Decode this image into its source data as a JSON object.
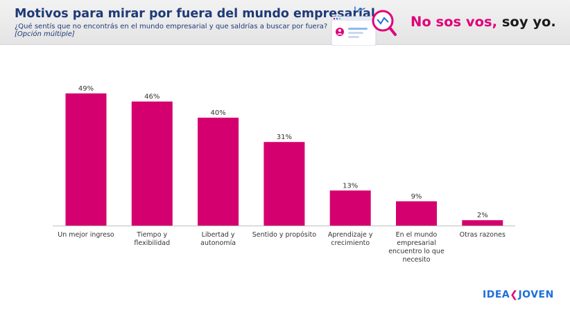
{
  "header": {
    "title": "Motivos para mirar por fuera del mundo empresarial",
    "subtitle": "¿Qué sentís que no encontrás en el mundo empresarial y que saldrías a buscar por fuera?",
    "note": "[Opción múltiple]"
  },
  "slogan": {
    "part1": "No sos vos,",
    "part2": " soy yo."
  },
  "brand": {
    "part1": "IDEA",
    "part2": "❮",
    "part3": "JOVEN"
  },
  "chart_data": {
    "type": "bar",
    "categories": [
      [
        "Un mejor ingreso"
      ],
      [
        "Tiempo y",
        "flexibilidad"
      ],
      [
        "Libertad y",
        "autonomía"
      ],
      [
        "Sentido y propósito"
      ],
      [
        "Aprendizaje y",
        "crecimiento"
      ],
      [
        "En el mundo",
        "empresarial",
        "encuentro lo que",
        "necesito"
      ],
      [
        "Otras razones"
      ]
    ],
    "values": [
      49,
      46,
      40,
      31,
      13,
      9,
      2
    ],
    "labels": [
      "49%",
      "46%",
      "40%",
      "31%",
      "13%",
      "9%",
      "2%"
    ],
    "ylim": [
      0,
      49
    ],
    "grid": false,
    "bar_color": "#d5006f"
  },
  "colors": {
    "accent": "#e0007a",
    "title": "#1e3a78",
    "brand_blue": "#1e6fd9"
  }
}
